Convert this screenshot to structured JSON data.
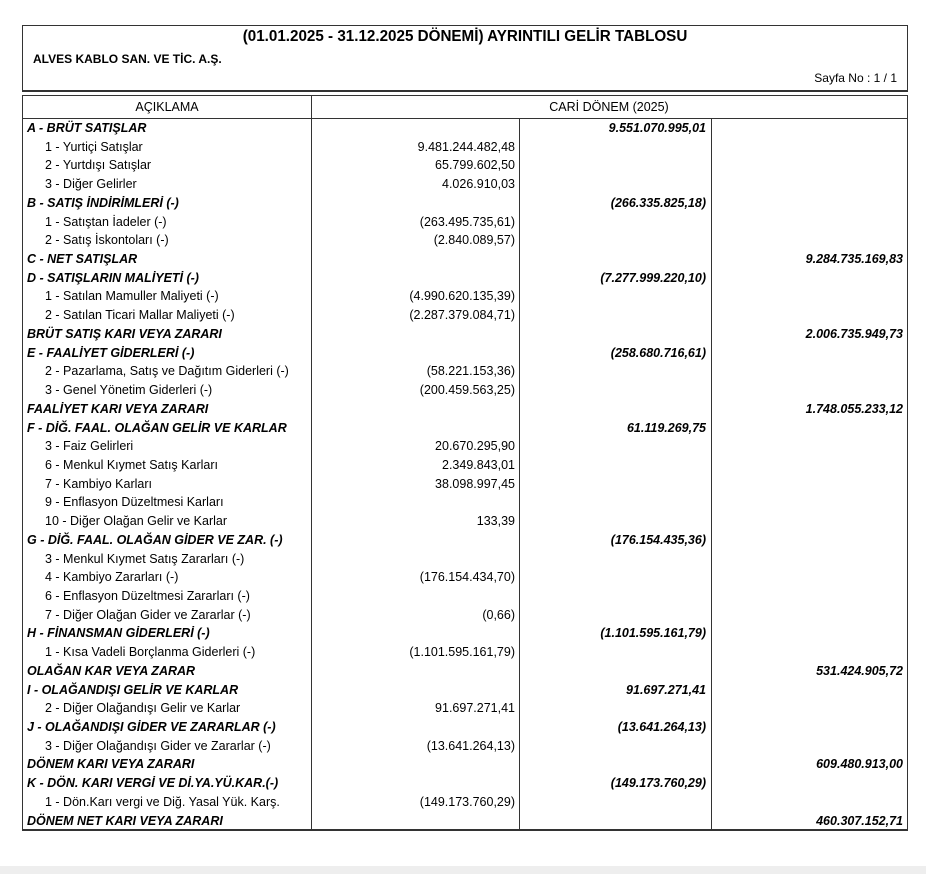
{
  "header": {
    "title": "(01.01.2025  -  31.12.2025 DÖNEMİ) AYRINTILI GELİR TABLOSU",
    "company": "ALVES KABLO SAN. VE TİC. A.Ş.",
    "page": "Sayfa No :  1 / 1"
  },
  "columns": {
    "description": "AÇIKLAMA",
    "period": "CARİ DÖNEM (2025)"
  },
  "rows": [
    {
      "label": "A - BRÜT SATIŞLAR",
      "bold": true,
      "c1": "",
      "c2": "9.551.070.995,01",
      "c3": ""
    },
    {
      "label": "1 - Yurtiçi Satışlar",
      "bold": false,
      "c1": "9.481.244.482,48",
      "c2": "",
      "c3": ""
    },
    {
      "label": "2 - Yurtdışı Satışlar",
      "bold": false,
      "c1": "65.799.602,50",
      "c2": "",
      "c3": ""
    },
    {
      "label": "3 - Diğer Gelirler",
      "bold": false,
      "c1": "4.026.910,03",
      "c2": "",
      "c3": ""
    },
    {
      "label": "B - SATIŞ İNDİRİMLERİ (-)",
      "bold": true,
      "c1": "",
      "c2": "(266.335.825,18)",
      "c3": ""
    },
    {
      "label": "1 - Satıştan İadeler (-)",
      "bold": false,
      "c1": "(263.495.735,61)",
      "c2": "",
      "c3": ""
    },
    {
      "label": "2 - Satış İskontoları (-)",
      "bold": false,
      "c1": "(2.840.089,57)",
      "c2": "",
      "c3": ""
    },
    {
      "label": "C - NET SATIŞLAR",
      "bold": true,
      "c1": "",
      "c2": "",
      "c3": "9.284.735.169,83"
    },
    {
      "label": "D - SATIŞLARIN MALİYETİ (-)",
      "bold": true,
      "c1": "",
      "c2": "(7.277.999.220,10)",
      "c3": ""
    },
    {
      "label": "1 - Satılan Mamuller Maliyeti (-)",
      "bold": false,
      "c1": "(4.990.620.135,39)",
      "c2": "",
      "c3": ""
    },
    {
      "label": "2 - Satılan Ticari Mallar Maliyeti (-)",
      "bold": false,
      "c1": "(2.287.379.084,71)",
      "c2": "",
      "c3": ""
    },
    {
      "label": "BRÜT SATIŞ KARI VEYA ZARARI",
      "bold": true,
      "c1": "",
      "c2": "",
      "c3": "2.006.735.949,73"
    },
    {
      "label": "E - FAALİYET GİDERLERİ (-)",
      "bold": true,
      "c1": "",
      "c2": "(258.680.716,61)",
      "c3": ""
    },
    {
      "label": "2 - Pazarlama, Satış ve Dağıtım Giderleri (-)",
      "bold": false,
      "c1": "(58.221.153,36)",
      "c2": "",
      "c3": ""
    },
    {
      "label": "3 - Genel Yönetim Giderleri (-)",
      "bold": false,
      "c1": "(200.459.563,25)",
      "c2": "",
      "c3": ""
    },
    {
      "label": "FAALİYET KARI VEYA ZARARI",
      "bold": true,
      "c1": "",
      "c2": "",
      "c3": "1.748.055.233,12"
    },
    {
      "label": "F - DİĞ. FAAL. OLAĞAN GELİR VE KARLAR",
      "bold": true,
      "c1": "",
      "c2": "61.119.269,75",
      "c3": ""
    },
    {
      "label": "3 - Faiz Gelirleri",
      "bold": false,
      "c1": "20.670.295,90",
      "c2": "",
      "c3": ""
    },
    {
      "label": "6 - Menkul Kıymet Satış Karları",
      "bold": false,
      "c1": "2.349.843,01",
      "c2": "",
      "c3": ""
    },
    {
      "label": "7 - Kambiyo Karları",
      "bold": false,
      "c1": "38.098.997,45",
      "c2": "",
      "c3": ""
    },
    {
      "label": "9 - Enflasyon Düzeltmesi Karları",
      "bold": false,
      "c1": "",
      "c2": "",
      "c3": ""
    },
    {
      "label": "10 - Diğer Olağan Gelir ve Karlar",
      "bold": false,
      "c1": "133,39",
      "c2": "",
      "c3": ""
    },
    {
      "label": "G - DİĞ. FAAL. OLAĞAN GİDER VE ZAR. (-)",
      "bold": true,
      "c1": "",
      "c2": "(176.154.435,36)",
      "c3": ""
    },
    {
      "label": "3 - Menkul Kıymet Satış Zararları (-)",
      "bold": false,
      "c1": "",
      "c2": "",
      "c3": ""
    },
    {
      "label": "4 - Kambiyo Zararları (-)",
      "bold": false,
      "c1": "(176.154.434,70)",
      "c2": "",
      "c3": ""
    },
    {
      "label": "6 - Enflasyon Düzeltmesi Zararları (-)",
      "bold": false,
      "c1": "",
      "c2": "",
      "c3": ""
    },
    {
      "label": "7 - Diğer Olağan Gider ve Zararlar (-)",
      "bold": false,
      "c1": "(0,66)",
      "c2": "",
      "c3": ""
    },
    {
      "label": "H - FİNANSMAN GİDERLERİ (-)",
      "bold": true,
      "c1": "",
      "c2": "(1.101.595.161,79)",
      "c3": ""
    },
    {
      "label": "1 - Kısa Vadeli Borçlanma Giderleri (-)",
      "bold": false,
      "c1": "(1.101.595.161,79)",
      "c2": "",
      "c3": ""
    },
    {
      "label": "OLAĞAN KAR VEYA ZARAR",
      "bold": true,
      "c1": "",
      "c2": "",
      "c3": "531.424.905,72"
    },
    {
      "label": "I - OLAĞANDIŞI GELİR VE KARLAR",
      "bold": true,
      "c1": "",
      "c2": "91.697.271,41",
      "c3": ""
    },
    {
      "label": "2 - Diğer Olağandışı Gelir ve Karlar",
      "bold": false,
      "c1": "91.697.271,41",
      "c2": "",
      "c3": ""
    },
    {
      "label": "J - OLAĞANDIŞI GİDER VE ZARARLAR (-)",
      "bold": true,
      "c1": "",
      "c2": "(13.641.264,13)",
      "c3": ""
    },
    {
      "label": "3 - Diğer Olağandışı Gider ve Zararlar (-)",
      "bold": false,
      "c1": "(13.641.264,13)",
      "c2": "",
      "c3": ""
    },
    {
      "label": "DÖNEM KARI VEYA ZARARI",
      "bold": true,
      "c1": "",
      "c2": "",
      "c3": "609.480.913,00"
    },
    {
      "label": "K - DÖN. KARI VERGİ VE Dİ.YA.YÜ.KAR.(-)",
      "bold": true,
      "c1": "",
      "c2": "(149.173.760,29)",
      "c3": ""
    },
    {
      "label": "1 - Dön.Karı vergi ve Diğ. Yasal Yük. Karş.",
      "bold": false,
      "c1": "(149.173.760,29)",
      "c2": "",
      "c3": ""
    },
    {
      "label": "DÖNEM NET KARI VEYA ZARARI",
      "bold": true,
      "c1": "",
      "c2": "",
      "c3": "460.307.152,71"
    }
  ]
}
